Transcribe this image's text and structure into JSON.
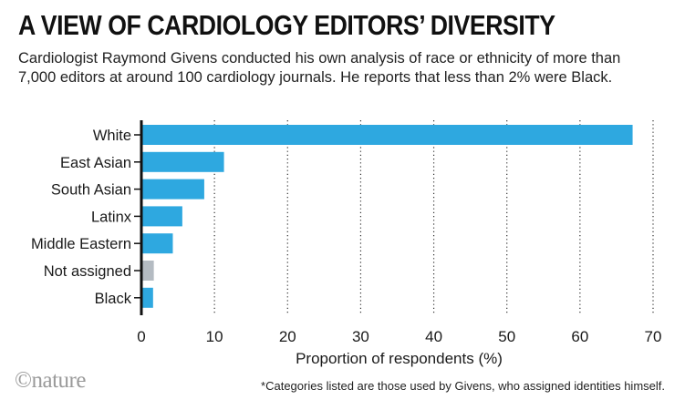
{
  "header": {
    "title": "A VIEW OF CARDIOLOGY EDITORS’ DIVERSITY",
    "subtitle": "Cardiologist Raymond Givens conducted his own analysis of race or ethnicity of more than 7,000 editors at around 100 cardiology journals. He reports that less than 2% were Black."
  },
  "chart_data": {
    "type": "bar",
    "orientation": "horizontal",
    "categories": [
      "White",
      "East Asian",
      "South Asian",
      "Latinx",
      "Middle Eastern",
      "Not assigned",
      "Black"
    ],
    "values": [
      67.2,
      11.3,
      8.6,
      5.6,
      4.3,
      1.7,
      1.6
    ],
    "bar_colors": [
      "#2ea8e0",
      "#2ea8e0",
      "#2ea8e0",
      "#2ea8e0",
      "#2ea8e0",
      "#b4bbc2",
      "#2ea8e0"
    ],
    "xlabel": "Proportion of respondents (%)",
    "ylabel": "",
    "xlim": [
      0,
      70
    ],
    "xticks": [
      0,
      10,
      20,
      30,
      40,
      50,
      60,
      70
    ],
    "grid": "vertical-dotted"
  },
  "footer": {
    "logo": "©nature",
    "footnote": "*Categories listed are those used by Givens, who assigned identities himself."
  }
}
